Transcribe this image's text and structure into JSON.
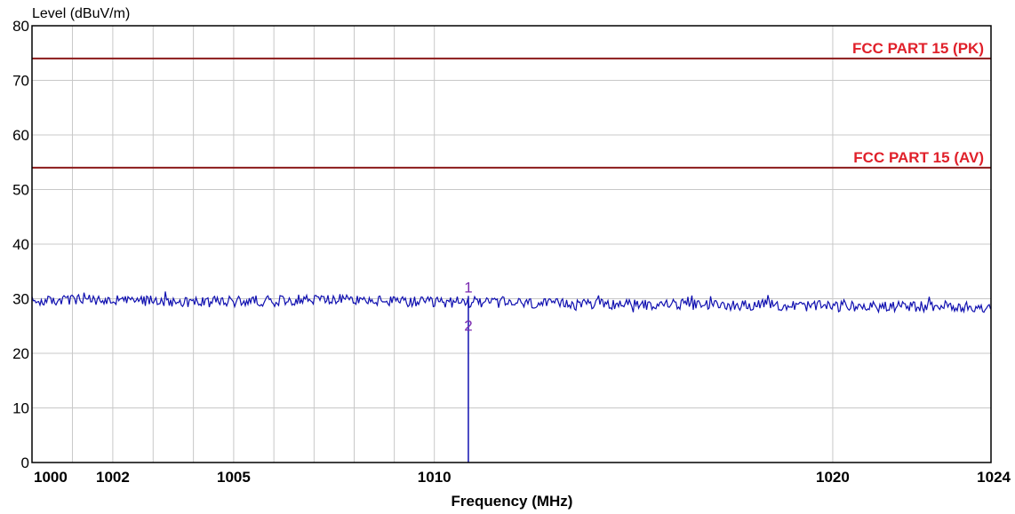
{
  "chart_data": {
    "type": "line",
    "title": "",
    "ylabel": "Level (dBuV/m)",
    "xlabel": "Frequency (MHz)",
    "xlim": [
      1000,
      1024
    ],
    "ylim": [
      0,
      80
    ],
    "x_scale": "log",
    "grid": true,
    "yticks": [
      0,
      10,
      20,
      30,
      40,
      50,
      60,
      70,
      80
    ],
    "xticks": [
      {
        "value": 1000,
        "label": "1000"
      },
      {
        "value": 1002,
        "label": "1002"
      },
      {
        "value": 1005,
        "label": "1005"
      },
      {
        "value": 1010,
        "label": "1010"
      },
      {
        "value": 1020,
        "label": "1020"
      },
      {
        "value": 1024,
        "label": "1024"
      }
    ],
    "minor_gridlines_x": [
      1001,
      1002,
      1003,
      1004,
      1005,
      1006,
      1007,
      1008,
      1009,
      1010,
      1020
    ],
    "limit_lines": [
      {
        "name": "FCC PART 15 (PK)",
        "y": 74,
        "color": "#8b1a1a",
        "label_color": "#e0202a"
      },
      {
        "name": "FCC PART 15 (AV)",
        "y": 54,
        "color": "#8b1a1a",
        "label_color": "#e0202a"
      }
    ],
    "series": [
      {
        "color": "#1010b0",
        "x": [
          1000,
          1001,
          1002,
          1003,
          1004,
          1005,
          1006,
          1007,
          1008,
          1009,
          1010,
          1011,
          1012,
          1013,
          1014,
          1015,
          1016,
          1017,
          1018,
          1019,
          1020,
          1021,
          1022,
          1023,
          1024
        ],
        "y": [
          29.5,
          29.8,
          29.6,
          29.7,
          29.4,
          29.5,
          29.7,
          29.9,
          29.8,
          29.5,
          29.3,
          29.4,
          29.2,
          29.0,
          29.1,
          28.9,
          29.0,
          28.8,
          28.9,
          28.7,
          28.6,
          28.5,
          28.6,
          28.7,
          28.2
        ]
      }
    ],
    "spike": {
      "x": 1010.85,
      "y_top": 30.5,
      "color": "#1010b0"
    },
    "markers": [
      {
        "label": "1",
        "x": 1010.85,
        "y": 31.5,
        "color": "#7a2ab0"
      },
      {
        "label": "2",
        "x": 1010.85,
        "y": 24.5,
        "color": "#7a2ab0"
      }
    ]
  }
}
